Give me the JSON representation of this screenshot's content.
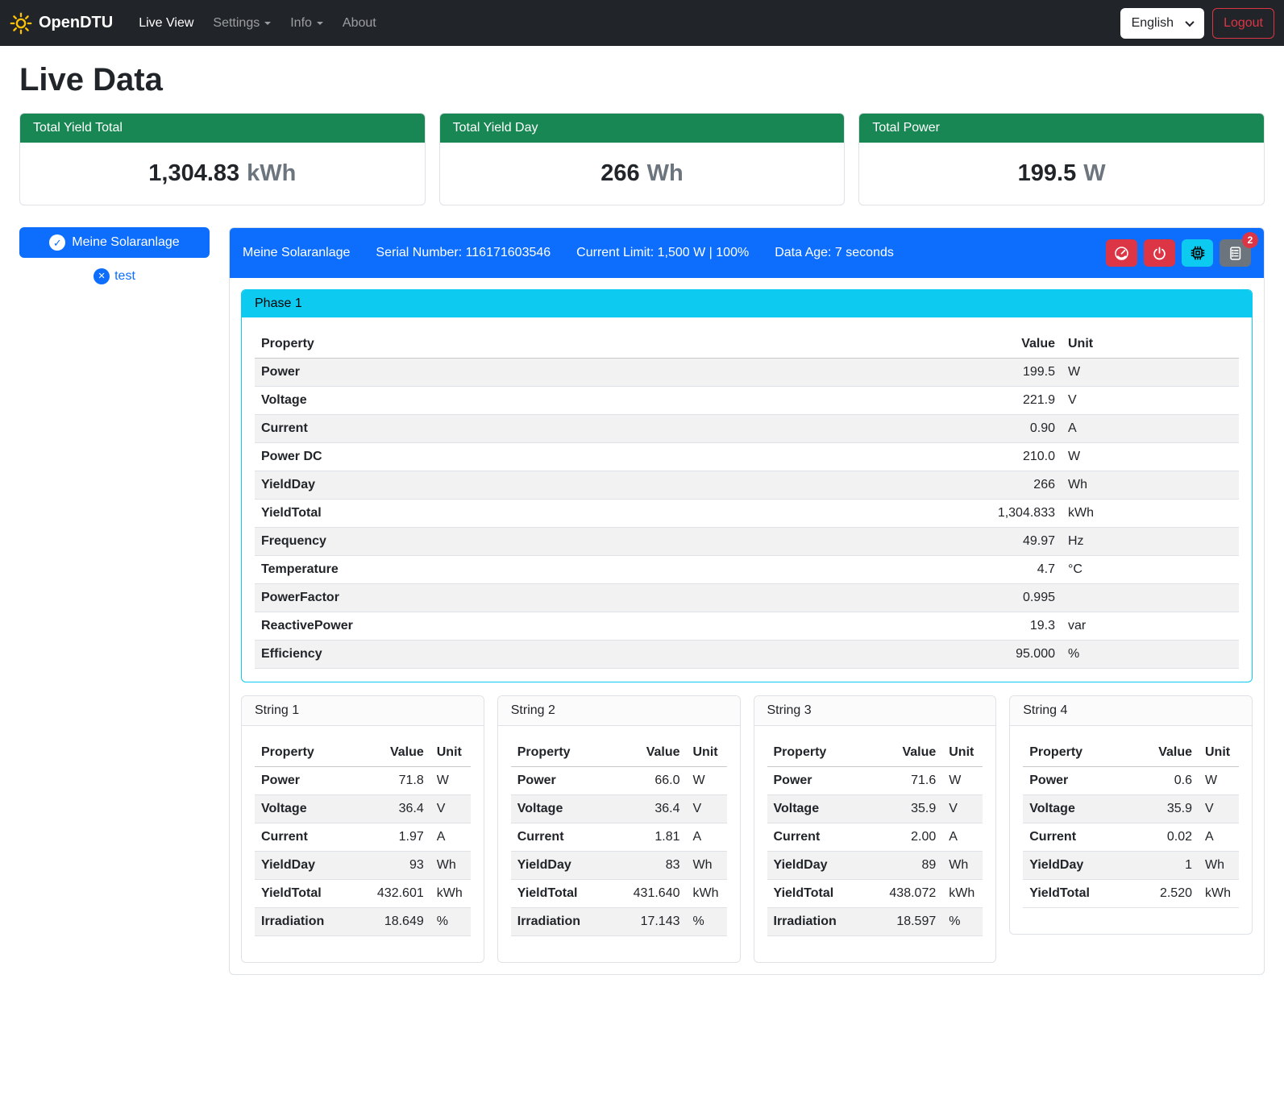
{
  "navbar": {
    "brand": "OpenDTU",
    "items": [
      {
        "label": "Live View",
        "active": true
      },
      {
        "label": "Settings",
        "active": false
      },
      {
        "label": "Info",
        "active": false
      },
      {
        "label": "About",
        "active": false
      }
    ],
    "language_selected": "English",
    "logout_label": "Logout"
  },
  "page": {
    "title": "Live Data"
  },
  "summary_cards": [
    {
      "title": "Total Yield Total",
      "value": "1,304.83",
      "unit": "kWh"
    },
    {
      "title": "Total Yield Day",
      "value": "266",
      "unit": "Wh"
    },
    {
      "title": "Total Power",
      "value": "199.5",
      "unit": "W"
    }
  ],
  "sidebar": {
    "selected_inverter": "Meine Solaranlage",
    "secondary_inverter": "test"
  },
  "inverter": {
    "name": "Meine Solaranlage",
    "serial_label": "Serial Number: 116171603546",
    "limit_label": "Current Limit: 1,500 W | 100%",
    "data_age_label": "Data Age: 7 seconds",
    "events_count": "2",
    "action_icons": [
      "limit-gauge-icon",
      "power-toggle-icon",
      "device-info-icon",
      "event-log-icon"
    ]
  },
  "phase": {
    "title": "Phase 1",
    "columns": [
      "Property",
      "Value",
      "Unit"
    ],
    "rows": [
      [
        "Power",
        "199.5",
        "W"
      ],
      [
        "Voltage",
        "221.9",
        "V"
      ],
      [
        "Current",
        "0.90",
        "A"
      ],
      [
        "Power DC",
        "210.0",
        "W"
      ],
      [
        "YieldDay",
        "266",
        "Wh"
      ],
      [
        "YieldTotal",
        "1,304.833",
        "kWh"
      ],
      [
        "Frequency",
        "49.97",
        "Hz"
      ],
      [
        "Temperature",
        "4.7",
        "°C"
      ],
      [
        "PowerFactor",
        "0.995",
        ""
      ],
      [
        "ReactivePower",
        "19.3",
        "var"
      ],
      [
        "Efficiency",
        "95.000",
        "%"
      ]
    ]
  },
  "strings": [
    {
      "title": "String 1",
      "columns": [
        "Property",
        "Value",
        "Unit"
      ],
      "rows": [
        [
          "Power",
          "71.8",
          "W"
        ],
        [
          "Voltage",
          "36.4",
          "V"
        ],
        [
          "Current",
          "1.97",
          "A"
        ],
        [
          "YieldDay",
          "93",
          "Wh"
        ],
        [
          "YieldTotal",
          "432.601",
          "kWh"
        ],
        [
          "Irradiation",
          "18.649",
          "%"
        ]
      ]
    },
    {
      "title": "String 2",
      "columns": [
        "Property",
        "Value",
        "Unit"
      ],
      "rows": [
        [
          "Power",
          "66.0",
          "W"
        ],
        [
          "Voltage",
          "36.4",
          "V"
        ],
        [
          "Current",
          "1.81",
          "A"
        ],
        [
          "YieldDay",
          "83",
          "Wh"
        ],
        [
          "YieldTotal",
          "431.640",
          "kWh"
        ],
        [
          "Irradiation",
          "17.143",
          "%"
        ]
      ]
    },
    {
      "title": "String 3",
      "columns": [
        "Property",
        "Value",
        "Unit"
      ],
      "rows": [
        [
          "Power",
          "71.6",
          "W"
        ],
        [
          "Voltage",
          "35.9",
          "V"
        ],
        [
          "Current",
          "2.00",
          "A"
        ],
        [
          "YieldDay",
          "89",
          "Wh"
        ],
        [
          "YieldTotal",
          "438.072",
          "kWh"
        ],
        [
          "Irradiation",
          "18.597",
          "%"
        ]
      ]
    },
    {
      "title": "String 4",
      "columns": [
        "Property",
        "Value",
        "Unit"
      ],
      "rows": [
        [
          "Power",
          "0.6",
          "W"
        ],
        [
          "Voltage",
          "35.9",
          "V"
        ],
        [
          "Current",
          "0.02",
          "A"
        ],
        [
          "YieldDay",
          "1",
          "Wh"
        ],
        [
          "YieldTotal",
          "2.520",
          "kWh"
        ]
      ]
    }
  ],
  "colors": {
    "primary": "#0d6efd",
    "success": "#198754",
    "info": "#0dcaf0",
    "danger": "#dc3545",
    "secondary": "#6c757d",
    "navbar_bg": "#212529",
    "brand_sun": "#ffc107"
  }
}
